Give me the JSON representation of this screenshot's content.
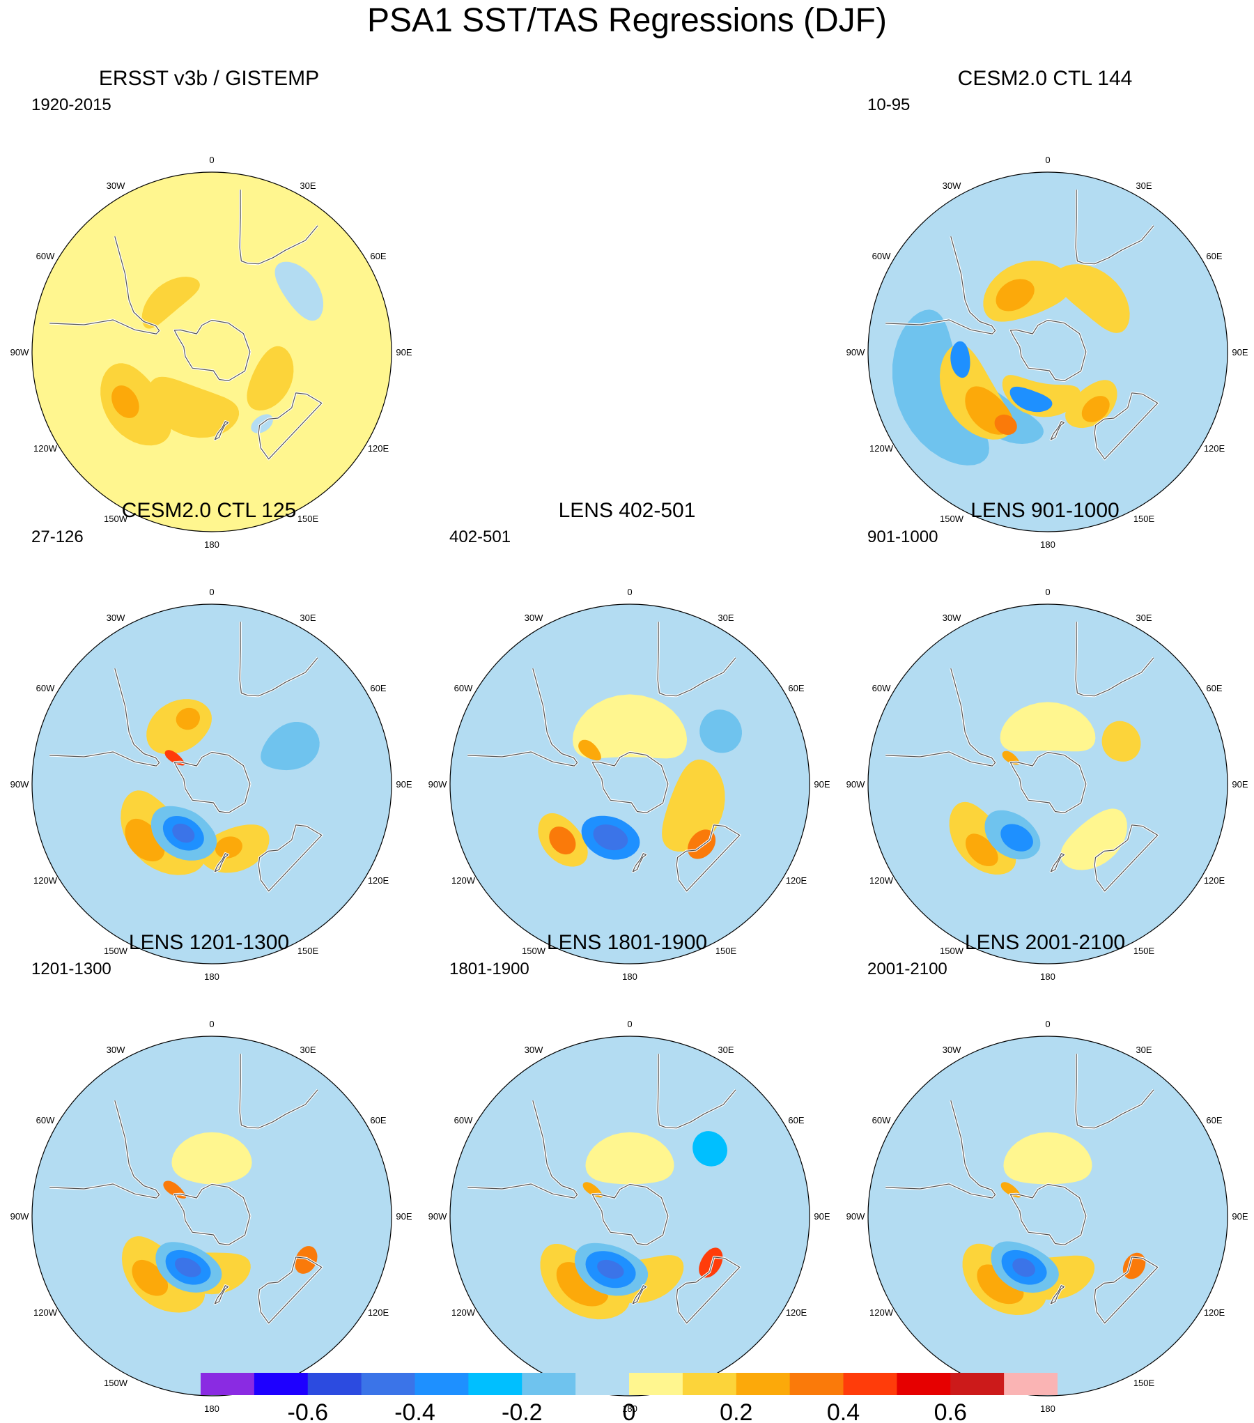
{
  "title": "PSA1 SST/TAS Regressions (DJF)",
  "longitude_labels": [
    "0",
    "30E",
    "60E",
    "90E",
    "120E",
    "150E",
    "180",
    "150W",
    "120W",
    "90W",
    "60W",
    "30W"
  ],
  "colorbar": {
    "colors": [
      "#8a2be2",
      "#1e00ff",
      "#2c4be0",
      "#3b74e8",
      "#1e90ff",
      "#00bfff",
      "#6fc3ee",
      "#b3dcf2",
      "#fff68f",
      "#fcd43a",
      "#fca90a",
      "#fa7a0a",
      "#ff3c0a",
      "#e60000",
      "#cc1a1a",
      "#fab4b4"
    ],
    "tick_labels": [
      "-0.6",
      "-0.4",
      "-0.2",
      "0",
      "0.2",
      "0.4",
      "0.6"
    ],
    "tick_values": [
      -0.6,
      -0.4,
      -0.2,
      0,
      0.2,
      0.4,
      0.6
    ]
  },
  "panels": [
    {
      "title": "ERSST v3b / GISTEMP",
      "period": "1920-2015",
      "background": "#fff68f",
      "blobs": [
        {
          "lon": 200,
          "lat": -52,
          "rlat": 14,
          "rlon": 45,
          "color": "#fcd43a"
        },
        {
          "lon": 115,
          "lat": -50,
          "rlat": 11,
          "rlon": 30,
          "color": "#fcd43a"
        },
        {
          "lon": 235,
          "lat": -35,
          "rlat": 14,
          "rlon": 28,
          "color": "#fcd43a"
        },
        {
          "lon": 240,
          "lat": -32,
          "rlat": 6,
          "rlon": 10,
          "color": "#fca90a"
        },
        {
          "lon": 320,
          "lat": -48,
          "rlat": 8,
          "rlon": 30,
          "color": "#fcd43a"
        },
        {
          "lon": 55,
          "lat": -28,
          "rlat": 8,
          "rlon": 18,
          "color": "#b3dcf2"
        },
        {
          "lon": 145,
          "lat": -38,
          "rlat": 4,
          "rlon": 8,
          "color": "#b3dcf2"
        }
      ]
    },
    {
      "title": "CESM2.0 CTL 144",
      "period": "10-95",
      "background": "#b3dcf2",
      "blobs": [
        {
          "lon": 215,
          "lat": -42,
          "rlat": 10,
          "rlon": 32,
          "color": "#6fc3ee"
        },
        {
          "lon": 250,
          "lat": -22,
          "rlat": 15,
          "rlon": 40,
          "color": "#6fc3ee"
        },
        {
          "lon": 240,
          "lat": -38,
          "rlat": 13,
          "rlon": 35,
          "color": "#fcd43a"
        },
        {
          "lon": 225,
          "lat": -40,
          "rlat": 9,
          "rlon": 20,
          "color": "#fca90a"
        },
        {
          "lon": 210,
          "lat": -40,
          "rlat": 5,
          "rlon": 8,
          "color": "#fa7a0a"
        },
        {
          "lon": 190,
          "lat": -60,
          "rlat": 10,
          "rlon": 50,
          "color": "#fcd43a"
        },
        {
          "lon": 140,
          "lat": -48,
          "rlat": 10,
          "rlon": 25,
          "color": "#fcd43a"
        },
        {
          "lon": 140,
          "lat": -45,
          "rlat": 6,
          "rlon": 12,
          "color": "#fca90a"
        },
        {
          "lon": 340,
          "lat": -50,
          "rlat": 15,
          "rlon": 40,
          "color": "#fcd43a"
        },
        {
          "lon": 330,
          "lat": -50,
          "rlat": 8,
          "rlon": 18,
          "color": "#fca90a"
        },
        {
          "lon": 40,
          "lat": -45,
          "rlat": 12,
          "rlon": 35,
          "color": "#fcd43a"
        },
        {
          "lon": 200,
          "lat": -58,
          "rlat": 6,
          "rlon": 25,
          "color": "#1e90ff"
        },
        {
          "lon": 265,
          "lat": -38,
          "rlat": 5,
          "rlon": 12,
          "color": "#1e90ff"
        }
      ]
    },
    {
      "title": "CESM2.0 CTL 125",
      "period": "27-126",
      "background": "#b3dcf2",
      "blobs": [
        {
          "lon": 225,
          "lat": -45,
          "rlat": 15,
          "rlon": 40,
          "color": "#fcd43a"
        },
        {
          "lon": 230,
          "lat": -38,
          "rlat": 8,
          "rlon": 16,
          "color": "#fca90a"
        },
        {
          "lon": 160,
          "lat": -48,
          "rlat": 12,
          "rlon": 30,
          "color": "#fcd43a"
        },
        {
          "lon": 165,
          "lat": -50,
          "rlat": 6,
          "rlon": 12,
          "color": "#fca90a"
        },
        {
          "lon": 330,
          "lat": -50,
          "rlat": 14,
          "rlon": 30,
          "color": "#fcd43a"
        },
        {
          "lon": 340,
          "lat": -48,
          "rlat": 6,
          "rlon": 10,
          "color": "#fca90a"
        },
        {
          "lon": 210,
          "lat": -55,
          "rlat": 14,
          "rlon": 35,
          "color": "#6fc3ee"
        },
        {
          "lon": 210,
          "lat": -55,
          "rlat": 9,
          "rlon": 22,
          "color": "#1e90ff"
        },
        {
          "lon": 210,
          "lat": -55,
          "rlat": 5,
          "rlon": 12,
          "color": "#3b74e8"
        },
        {
          "lon": 65,
          "lat": -40,
          "rlat": 16,
          "rlon": 15,
          "color": "#6fc3ee"
        },
        {
          "lon": 305,
          "lat": -62,
          "rlat": 7,
          "rlon": 6,
          "color": "#ff3c0a"
        }
      ]
    },
    {
      "title": "LENS 402-501",
      "period": "402-501",
      "background": "#b3dcf2",
      "blobs": [
        {
          "lon": 110,
          "lat": -48,
          "rlat": 15,
          "rlon": 40,
          "color": "#fcd43a"
        },
        {
          "lon": 230,
          "lat": -38,
          "rlat": 10,
          "rlon": 20,
          "color": "#fcd43a"
        },
        {
          "lon": 230,
          "lat": -38,
          "rlat": 6,
          "rlon": 10,
          "color": "#fa7a0a"
        },
        {
          "lon": 0,
          "lat": -55,
          "rlat": 18,
          "rlon": 60,
          "color": "#fff68f"
        },
        {
          "lon": 200,
          "lat": -55,
          "rlat": 12,
          "rlon": 30,
          "color": "#1e90ff"
        },
        {
          "lon": 200,
          "lat": -55,
          "rlat": 7,
          "rlon": 18,
          "color": "#3b74e8"
        },
        {
          "lon": 310,
          "lat": -58,
          "rlat": 8,
          "rlon": 8,
          "color": "#fca90a"
        },
        {
          "lon": 60,
          "lat": -30,
          "rlat": 10,
          "rlon": 12,
          "color": "#6fc3ee"
        },
        {
          "lon": 130,
          "lat": -35,
          "rlat": 6,
          "rlon": 10,
          "color": "#fa7a0a"
        }
      ]
    },
    {
      "title": "LENS 901-1000",
      "period": "901-1000",
      "background": "#b3dcf2",
      "blobs": [
        {
          "lon": 230,
          "lat": -38,
          "rlat": 12,
          "rlon": 28,
          "color": "#fcd43a"
        },
        {
          "lon": 225,
          "lat": -35,
          "rlat": 6,
          "rlon": 12,
          "color": "#fca90a"
        },
        {
          "lon": 0,
          "lat": -55,
          "rlat": 14,
          "rlon": 50,
          "color": "#fff68f"
        },
        {
          "lon": 60,
          "lat": -40,
          "rlat": 10,
          "rlon": 14,
          "color": "#fcd43a"
        },
        {
          "lon": 140,
          "lat": -45,
          "rlat": 12,
          "rlon": 30,
          "color": "#fff68f"
        },
        {
          "lon": 215,
          "lat": -52,
          "rlat": 12,
          "rlon": 28,
          "color": "#6fc3ee"
        },
        {
          "lon": 210,
          "lat": -52,
          "rlat": 7,
          "rlon": 16,
          "color": "#1e90ff"
        },
        {
          "lon": 305,
          "lat": -62,
          "rlat": 6,
          "rlon": 6,
          "color": "#fca90a"
        }
      ]
    },
    {
      "title": "LENS 1201-1300",
      "period": "1201-1300",
      "background": "#b3dcf2",
      "blobs": [
        {
          "lon": 220,
          "lat": -42,
          "rlat": 14,
          "rlon": 35,
          "color": "#fcd43a"
        },
        {
          "lon": 225,
          "lat": -38,
          "rlat": 7,
          "rlon": 14,
          "color": "#fca90a"
        },
        {
          "lon": 180,
          "lat": -55,
          "rlat": 12,
          "rlon": 40,
          "color": "#fcd43a"
        },
        {
          "lon": 0,
          "lat": -55,
          "rlat": 15,
          "rlon": 40,
          "color": "#fff68f"
        },
        {
          "lon": 205,
          "lat": -55,
          "rlat": 13,
          "rlon": 35,
          "color": "#6fc3ee"
        },
        {
          "lon": 205,
          "lat": -55,
          "rlat": 9,
          "rlon": 24,
          "color": "#1e90ff"
        },
        {
          "lon": 205,
          "lat": -55,
          "rlat": 5,
          "rlon": 14,
          "color": "#3b74e8"
        },
        {
          "lon": 305,
          "lat": -62,
          "rlat": 8,
          "rlon": 7,
          "color": "#fa7a0a"
        },
        {
          "lon": 115,
          "lat": -30,
          "rlat": 5,
          "rlon": 8,
          "color": "#fa7a0a"
        }
      ]
    },
    {
      "title": "LENS 1801-1900",
      "period": "1801-1900",
      "background": "#b3dcf2",
      "blobs": [
        {
          "lon": 215,
          "lat": -40,
          "rlat": 14,
          "rlon": 35,
          "color": "#fcd43a"
        },
        {
          "lon": 215,
          "lat": -40,
          "rlat": 9,
          "rlon": 20,
          "color": "#fca90a"
        },
        {
          "lon": 170,
          "lat": -50,
          "rlat": 12,
          "rlon": 40,
          "color": "#fcd43a"
        },
        {
          "lon": 200,
          "lat": -55,
          "rlat": 14,
          "rlon": 38,
          "color": "#6fc3ee"
        },
        {
          "lon": 200,
          "lat": -55,
          "rlat": 10,
          "rlon": 26,
          "color": "#1e90ff"
        },
        {
          "lon": 200,
          "lat": -55,
          "rlat": 5,
          "rlon": 14,
          "color": "#3b74e8"
        },
        {
          "lon": 0,
          "lat": -55,
          "rlat": 15,
          "rlon": 45,
          "color": "#fff68f"
        },
        {
          "lon": 120,
          "lat": -35,
          "rlat": 5,
          "rlon": 10,
          "color": "#ff3c0a"
        },
        {
          "lon": 50,
          "lat": -30,
          "rlat": 8,
          "rlon": 10,
          "color": "#00bfff"
        },
        {
          "lon": 305,
          "lat": -62,
          "rlat": 7,
          "rlon": 6,
          "color": "#fca90a"
        }
      ]
    },
    {
      "title": "LENS 2001-2100",
      "period": "2001-2100",
      "background": "#b3dcf2",
      "blobs": [
        {
          "lon": 215,
          "lat": -42,
          "rlat": 14,
          "rlon": 34,
          "color": "#fcd43a"
        },
        {
          "lon": 215,
          "lat": -40,
          "rlat": 8,
          "rlon": 18,
          "color": "#fca90a"
        },
        {
          "lon": 175,
          "lat": -52,
          "rlat": 12,
          "rlon": 40,
          "color": "#fcd43a"
        },
        {
          "lon": 205,
          "lat": -55,
          "rlat": 13,
          "rlon": 36,
          "color": "#6fc3ee"
        },
        {
          "lon": 205,
          "lat": -55,
          "rlat": 9,
          "rlon": 24,
          "color": "#1e90ff"
        },
        {
          "lon": 205,
          "lat": -55,
          "rlat": 5,
          "rlon": 12,
          "color": "#3b74e8"
        },
        {
          "lon": 0,
          "lat": -55,
          "rlat": 15,
          "rlon": 45,
          "color": "#fff68f"
        },
        {
          "lon": 120,
          "lat": -32,
          "rlat": 5,
          "rlon": 8,
          "color": "#fa7a0a"
        },
        {
          "lon": 305,
          "lat": -62,
          "rlat": 7,
          "rlon": 6,
          "color": "#fca90a"
        }
      ]
    }
  ]
}
